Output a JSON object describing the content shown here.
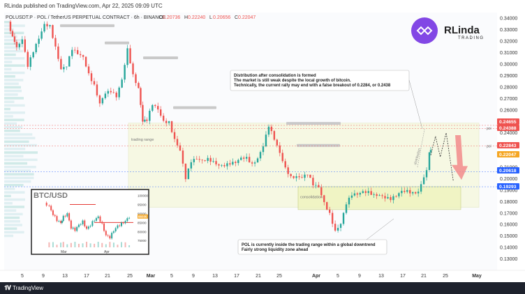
{
  "header": {
    "published": "RLinda published on TradingView.com, Apr 22, 2025 09:09 UTC"
  },
  "footer": {
    "brand": "TradingView"
  },
  "symbol": {
    "title": "POLUSDT.P · POL / TetherUS PERPETUAL CONTRACT · 6h · BINANCE",
    "o_label": "O",
    "o": "0.20736",
    "h_label": "H",
    "h": "0.22240",
    "l_label": "L",
    "l": "0.20656",
    "c_label": "C",
    "c": "0.22047"
  },
  "logo": {
    "text": "RLinda",
    "sub": "TRADING"
  },
  "colors": {
    "up": "#26a69a",
    "down": "#ef5350",
    "accent_blue": "#2962ff",
    "zone": "#f3f7cf",
    "arrow": "#f28b8b"
  },
  "annotations": {
    "top_note": [
      "Distribution after consolidation is formed",
      "The market is still weak despite the local growth of bitcoin.",
      "Technically, the current rally may end with a false breakout of 0.2284, or 0.2438"
    ],
    "bottom_note": [
      "POL is currently inside the trading range within a global downtrend",
      "Fairly strong liquidity zone ahead"
    ],
    "trading_range": "trading range",
    "consolidation": "consolidation",
    "distribution": "distribution",
    "poi": "poi"
  },
  "chart_data": {
    "type": "candlestick",
    "y_axis_ticks": [
      "0.34000",
      "0.33000",
      "0.32000",
      "0.31000",
      "0.30000",
      "0.29000",
      "0.28000",
      "0.27000",
      "0.26000",
      "0.25000",
      "0.24000",
      "0.23000",
      "0.22000",
      "0.21000",
      "0.20000",
      "0.19000",
      "0.18000",
      "0.17000",
      "0.16000",
      "0.15000",
      "0.14000",
      "0.13000"
    ],
    "x_axis_ticks": [
      "5",
      "9",
      "13",
      "17",
      "21",
      "25",
      "Mar",
      "5",
      "9",
      "13",
      "17",
      "21",
      "25",
      "Apr",
      "5",
      "9",
      "13",
      "17",
      "21",
      "25",
      "May"
    ],
    "ylim": [
      0.12,
      0.345
    ],
    "price_labels": [
      {
        "value": "0.24655",
        "color": "#ef5350"
      },
      {
        "value": "0.24388",
        "color": "#ef5350"
      },
      {
        "value": "0.22843",
        "color": "#ef5350"
      },
      {
        "value": "0.22047",
        "color": "#f5a623"
      },
      {
        "value": "0.20618",
        "color": "#2962ff"
      },
      {
        "value": "0.19293",
        "color": "#2962ff"
      }
    ],
    "levels": [
      0.24655,
      0.24388,
      0.22843,
      0.20618,
      0.19293
    ],
    "trading_range": [
      0.175,
      0.2485
    ],
    "consolidation": [
      0.173,
      0.193
    ],
    "path": [
      [
        0,
        0.337
      ],
      [
        6,
        0.318
      ],
      [
        10,
        0.326
      ],
      [
        14,
        0.3
      ],
      [
        18,
        0.309
      ],
      [
        22,
        0.318
      ],
      [
        26,
        0.331
      ],
      [
        30,
        0.333
      ],
      [
        34,
        0.318
      ],
      [
        38,
        0.3
      ],
      [
        42,
        0.301
      ],
      [
        46,
        0.312
      ],
      [
        50,
        0.305
      ],
      [
        54,
        0.302
      ],
      [
        58,
        0.29
      ],
      [
        62,
        0.284
      ],
      [
        66,
        0.27
      ],
      [
        70,
        0.278
      ],
      [
        74,
        0.276
      ],
      [
        78,
        0.268
      ],
      [
        82,
        0.282
      ],
      [
        86,
        0.311
      ],
      [
        90,
        0.292
      ],
      [
        94,
        0.283
      ],
      [
        97,
        0.254
      ],
      [
        100,
        0.252
      ],
      [
        104,
        0.262
      ],
      [
        108,
        0.256
      ],
      [
        112,
        0.247
      ],
      [
        116,
        0.25
      ],
      [
        120,
        0.238
      ],
      [
        124,
        0.229
      ],
      [
        128,
        0.202
      ],
      [
        132,
        0.213
      ],
      [
        136,
        0.213
      ],
      [
        140,
        0.212
      ],
      [
        144,
        0.217
      ],
      [
        148,
        0.218
      ],
      [
        152,
        0.216
      ],
      [
        156,
        0.214
      ],
      [
        160,
        0.212
      ],
      [
        164,
        0.21
      ],
      [
        168,
        0.214
      ],
      [
        172,
        0.217
      ],
      [
        176,
        0.215
      ],
      [
        180,
        0.222
      ],
      [
        184,
        0.232
      ],
      [
        188,
        0.246
      ],
      [
        192,
        0.231
      ],
      [
        196,
        0.218
      ],
      [
        200,
        0.207
      ],
      [
        204,
        0.203
      ],
      [
        208,
        0.206
      ],
      [
        212,
        0.205
      ],
      [
        216,
        0.205
      ],
      [
        220,
        0.192
      ],
      [
        224,
        0.188
      ],
      [
        228,
        0.176
      ],
      [
        232,
        0.17
      ],
      [
        236,
        0.158
      ],
      [
        240,
        0.165
      ],
      [
        244,
        0.18
      ],
      [
        248,
        0.184
      ],
      [
        252,
        0.182
      ],
      [
        256,
        0.185
      ],
      [
        260,
        0.188
      ],
      [
        264,
        0.189
      ],
      [
        268,
        0.19
      ],
      [
        272,
        0.186
      ],
      [
        276,
        0.181
      ],
      [
        280,
        0.181
      ],
      [
        284,
        0.185
      ],
      [
        288,
        0.188
      ],
      [
        292,
        0.19
      ],
      [
        296,
        0.193
      ],
      [
        300,
        0.205
      ],
      [
        302,
        0.208
      ],
      [
        304,
        0.22
      ],
      [
        305,
        0.2205
      ]
    ],
    "projection": [
      [
        0.2205,
        0
      ],
      [
        0.237,
        8
      ],
      [
        0.219,
        16
      ],
      [
        0.24,
        26
      ],
      [
        0.198,
        38
      ]
    ],
    "inset": {
      "title": "BTC/USD",
      "y_ticks": [
        "100000",
        "95000",
        "90000",
        "85000",
        "80000",
        "75000"
      ],
      "x_ticks": [
        "Mar",
        "Apr"
      ],
      "ylim": [
        72000,
        101000
      ],
      "last_price": "88335",
      "level_high": 95000,
      "level_low": 85000,
      "path": [
        [
          0,
          96000
        ],
        [
          4,
          94500
        ],
        [
          7,
          90000
        ],
        [
          10,
          86000
        ],
        [
          13,
          84000
        ],
        [
          15,
          88000
        ],
        [
          18,
          90500
        ],
        [
          21,
          82500
        ],
        [
          24,
          80500
        ],
        [
          27,
          83000
        ],
        [
          30,
          85500
        ],
        [
          33,
          82000
        ],
        [
          36,
          84000
        ],
        [
          39,
          86000
        ],
        [
          42,
          87500
        ],
        [
          45,
          84000
        ],
        [
          48,
          78500
        ],
        [
          51,
          77000
        ],
        [
          54,
          80000
        ],
        [
          57,
          82500
        ],
        [
          60,
          84500
        ],
        [
          63,
          86500
        ],
        [
          66,
          88335
        ]
      ]
    }
  }
}
